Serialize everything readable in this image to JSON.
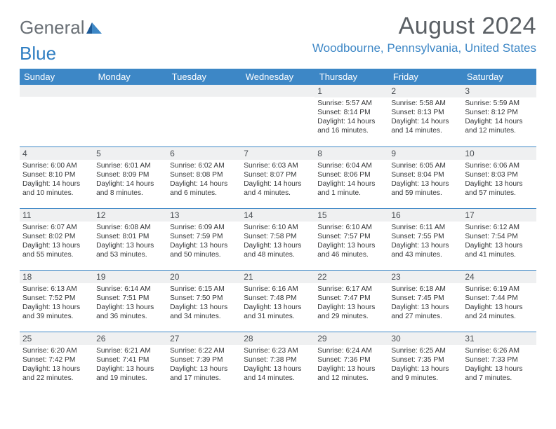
{
  "logo": {
    "part1": "General",
    "part2": "Blue"
  },
  "title": "August 2024",
  "location": "Woodbourne, Pennsylvania, United States",
  "colors": {
    "header_bg": "#3d87c6",
    "daynum_bg": "#eff0f1",
    "border": "#3d87c6",
    "text": "#343638",
    "title_text": "#5a5f64",
    "location_text": "#3d87c6"
  },
  "day_headers": [
    "Sunday",
    "Monday",
    "Tuesday",
    "Wednesday",
    "Thursday",
    "Friday",
    "Saturday"
  ],
  "weeks": [
    [
      {
        "num": "",
        "sunrise": "",
        "sunset": "",
        "daylight": ""
      },
      {
        "num": "",
        "sunrise": "",
        "sunset": "",
        "daylight": ""
      },
      {
        "num": "",
        "sunrise": "",
        "sunset": "",
        "daylight": ""
      },
      {
        "num": "",
        "sunrise": "",
        "sunset": "",
        "daylight": ""
      },
      {
        "num": "1",
        "sunrise": "Sunrise: 5:57 AM",
        "sunset": "Sunset: 8:14 PM",
        "daylight": "Daylight: 14 hours and 16 minutes."
      },
      {
        "num": "2",
        "sunrise": "Sunrise: 5:58 AM",
        "sunset": "Sunset: 8:13 PM",
        "daylight": "Daylight: 14 hours and 14 minutes."
      },
      {
        "num": "3",
        "sunrise": "Sunrise: 5:59 AM",
        "sunset": "Sunset: 8:12 PM",
        "daylight": "Daylight: 14 hours and 12 minutes."
      }
    ],
    [
      {
        "num": "4",
        "sunrise": "Sunrise: 6:00 AM",
        "sunset": "Sunset: 8:10 PM",
        "daylight": "Daylight: 14 hours and 10 minutes."
      },
      {
        "num": "5",
        "sunrise": "Sunrise: 6:01 AM",
        "sunset": "Sunset: 8:09 PM",
        "daylight": "Daylight: 14 hours and 8 minutes."
      },
      {
        "num": "6",
        "sunrise": "Sunrise: 6:02 AM",
        "sunset": "Sunset: 8:08 PM",
        "daylight": "Daylight: 14 hours and 6 minutes."
      },
      {
        "num": "7",
        "sunrise": "Sunrise: 6:03 AM",
        "sunset": "Sunset: 8:07 PM",
        "daylight": "Daylight: 14 hours and 4 minutes."
      },
      {
        "num": "8",
        "sunrise": "Sunrise: 6:04 AM",
        "sunset": "Sunset: 8:06 PM",
        "daylight": "Daylight: 14 hours and 1 minute."
      },
      {
        "num": "9",
        "sunrise": "Sunrise: 6:05 AM",
        "sunset": "Sunset: 8:04 PM",
        "daylight": "Daylight: 13 hours and 59 minutes."
      },
      {
        "num": "10",
        "sunrise": "Sunrise: 6:06 AM",
        "sunset": "Sunset: 8:03 PM",
        "daylight": "Daylight: 13 hours and 57 minutes."
      }
    ],
    [
      {
        "num": "11",
        "sunrise": "Sunrise: 6:07 AM",
        "sunset": "Sunset: 8:02 PM",
        "daylight": "Daylight: 13 hours and 55 minutes."
      },
      {
        "num": "12",
        "sunrise": "Sunrise: 6:08 AM",
        "sunset": "Sunset: 8:01 PM",
        "daylight": "Daylight: 13 hours and 53 minutes."
      },
      {
        "num": "13",
        "sunrise": "Sunrise: 6:09 AM",
        "sunset": "Sunset: 7:59 PM",
        "daylight": "Daylight: 13 hours and 50 minutes."
      },
      {
        "num": "14",
        "sunrise": "Sunrise: 6:10 AM",
        "sunset": "Sunset: 7:58 PM",
        "daylight": "Daylight: 13 hours and 48 minutes."
      },
      {
        "num": "15",
        "sunrise": "Sunrise: 6:10 AM",
        "sunset": "Sunset: 7:57 PM",
        "daylight": "Daylight: 13 hours and 46 minutes."
      },
      {
        "num": "16",
        "sunrise": "Sunrise: 6:11 AM",
        "sunset": "Sunset: 7:55 PM",
        "daylight": "Daylight: 13 hours and 43 minutes."
      },
      {
        "num": "17",
        "sunrise": "Sunrise: 6:12 AM",
        "sunset": "Sunset: 7:54 PM",
        "daylight": "Daylight: 13 hours and 41 minutes."
      }
    ],
    [
      {
        "num": "18",
        "sunrise": "Sunrise: 6:13 AM",
        "sunset": "Sunset: 7:52 PM",
        "daylight": "Daylight: 13 hours and 39 minutes."
      },
      {
        "num": "19",
        "sunrise": "Sunrise: 6:14 AM",
        "sunset": "Sunset: 7:51 PM",
        "daylight": "Daylight: 13 hours and 36 minutes."
      },
      {
        "num": "20",
        "sunrise": "Sunrise: 6:15 AM",
        "sunset": "Sunset: 7:50 PM",
        "daylight": "Daylight: 13 hours and 34 minutes."
      },
      {
        "num": "21",
        "sunrise": "Sunrise: 6:16 AM",
        "sunset": "Sunset: 7:48 PM",
        "daylight": "Daylight: 13 hours and 31 minutes."
      },
      {
        "num": "22",
        "sunrise": "Sunrise: 6:17 AM",
        "sunset": "Sunset: 7:47 PM",
        "daylight": "Daylight: 13 hours and 29 minutes."
      },
      {
        "num": "23",
        "sunrise": "Sunrise: 6:18 AM",
        "sunset": "Sunset: 7:45 PM",
        "daylight": "Daylight: 13 hours and 27 minutes."
      },
      {
        "num": "24",
        "sunrise": "Sunrise: 6:19 AM",
        "sunset": "Sunset: 7:44 PM",
        "daylight": "Daylight: 13 hours and 24 minutes."
      }
    ],
    [
      {
        "num": "25",
        "sunrise": "Sunrise: 6:20 AM",
        "sunset": "Sunset: 7:42 PM",
        "daylight": "Daylight: 13 hours and 22 minutes."
      },
      {
        "num": "26",
        "sunrise": "Sunrise: 6:21 AM",
        "sunset": "Sunset: 7:41 PM",
        "daylight": "Daylight: 13 hours and 19 minutes."
      },
      {
        "num": "27",
        "sunrise": "Sunrise: 6:22 AM",
        "sunset": "Sunset: 7:39 PM",
        "daylight": "Daylight: 13 hours and 17 minutes."
      },
      {
        "num": "28",
        "sunrise": "Sunrise: 6:23 AM",
        "sunset": "Sunset: 7:38 PM",
        "daylight": "Daylight: 13 hours and 14 minutes."
      },
      {
        "num": "29",
        "sunrise": "Sunrise: 6:24 AM",
        "sunset": "Sunset: 7:36 PM",
        "daylight": "Daylight: 13 hours and 12 minutes."
      },
      {
        "num": "30",
        "sunrise": "Sunrise: 6:25 AM",
        "sunset": "Sunset: 7:35 PM",
        "daylight": "Daylight: 13 hours and 9 minutes."
      },
      {
        "num": "31",
        "sunrise": "Sunrise: 6:26 AM",
        "sunset": "Sunset: 7:33 PM",
        "daylight": "Daylight: 13 hours and 7 minutes."
      }
    ]
  ]
}
